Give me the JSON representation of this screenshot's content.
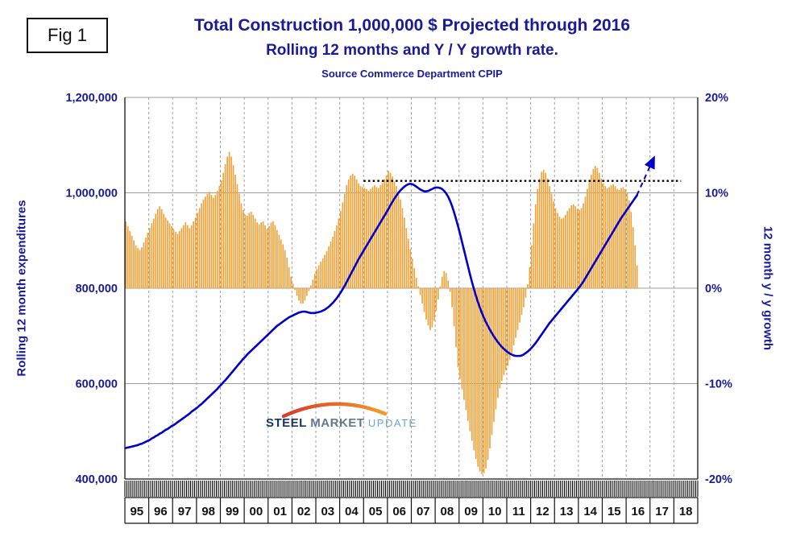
{
  "fig_label": "Fig 1",
  "title_line1": "Total Construction 1,000,000 $ Projected through 2016",
  "title_line2": "Rolling 12 months and Y / Y growth rate.",
  "source_line": "Source Commerce Department CPIP",
  "logo": {
    "word1": "STEEL",
    "word2": "MARKET",
    "word3": "UPDATE"
  },
  "colors": {
    "navy": "#1a1a99",
    "bar": "#F1A33C",
    "line_blue": "#0000CC",
    "grid": "#9e9e9e",
    "reference_dotted": "#000000",
    "year_label": "#111111"
  },
  "chart_data": {
    "type": "combo",
    "title": "Total Construction 1,000,000 $ Projected through 2016 — Rolling 12 months and Y / Y growth rate",
    "x_axis": {
      "start_year": 1995,
      "end_year": 2019,
      "year_labels": [
        "95",
        "96",
        "97",
        "98",
        "99",
        "00",
        "01",
        "02",
        "03",
        "04",
        "05",
        "06",
        "07",
        "08",
        "09",
        "10",
        "11",
        "12",
        "13",
        "14",
        "15",
        "16",
        "17",
        "18"
      ]
    },
    "left_axis": {
      "label": "Rolling 12 month expenditures",
      "unit": "thousand_dollars",
      "range": [
        400,
        1200
      ],
      "tick_values": [
        400,
        600,
        800,
        1000,
        1200
      ],
      "tick_labels": [
        "400,000",
        "600,000",
        "800,000",
        "1,000,000",
        "1,200,000"
      ]
    },
    "right_axis": {
      "label": "12 month y / y growth",
      "unit": "percent",
      "range": [
        -20,
        20
      ],
      "tick_values": [
        -20,
        -10,
        0,
        10,
        20
      ],
      "tick_labels": [
        "-20%",
        "-10%",
        "0%",
        "10%",
        "20%"
      ]
    },
    "series": [
      {
        "name": "yy-growth-bars",
        "type": "bar",
        "axis": "right",
        "unit": "percent",
        "start": "1995-01",
        "monthly_values": [
          7.0,
          6.5,
          6.0,
          5.5,
          5.0,
          4.5,
          4.2,
          4.0,
          4.3,
          4.8,
          5.3,
          5.8,
          6.3,
          6.8,
          7.3,
          7.8,
          8.3,
          8.6,
          8.3,
          7.8,
          7.4,
          7.1,
          6.8,
          6.5,
          6.2,
          5.9,
          5.7,
          6.0,
          6.3,
          6.6,
          6.9,
          6.6,
          6.3,
          6.6,
          7.0,
          7.4,
          7.9,
          8.4,
          8.9,
          9.3,
          9.6,
          9.9,
          10.1,
          9.8,
          9.5,
          9.8,
          10.2,
          10.7,
          11.3,
          12.1,
          13.0,
          13.8,
          14.3,
          13.8,
          12.9,
          11.9,
          10.9,
          9.9,
          8.9,
          8.2,
          7.7,
          7.6,
          7.9,
          8.0,
          7.7,
          7.3,
          6.9,
          6.7,
          6.9,
          7.0,
          6.6,
          6.2,
          6.5,
          6.9,
          7.0,
          6.6,
          6.1,
          5.6,
          5.1,
          4.6,
          4.0,
          3.2,
          2.2,
          1.2,
          0.5,
          -0.2,
          -0.8,
          -1.3,
          -1.6,
          -1.6,
          -1.3,
          -0.8,
          -0.3,
          0.3,
          0.9,
          1.5,
          2.0,
          2.4,
          2.8,
          3.1,
          3.5,
          3.9,
          4.4,
          4.9,
          5.4,
          6.0,
          6.6,
          7.3,
          8.1,
          9.0,
          9.9,
          10.8,
          11.4,
          11.8,
          12.0,
          11.8,
          11.4,
          11.0,
          10.7,
          10.6,
          10.5,
          10.4,
          10.2,
          10.4,
          10.6,
          10.8,
          10.6,
          10.5,
          10.8,
          11.0,
          11.4,
          11.8,
          12.3,
          12.1,
          11.7,
          11.2,
          10.7,
          10.1,
          9.3,
          8.4,
          7.4,
          6.3,
          5.2,
          4.1,
          3.1,
          2.1,
          1.1,
          0.2,
          -0.7,
          -1.6,
          -2.5,
          -3.3,
          -3.9,
          -4.4,
          -4.1,
          -3.4,
          -2.4,
          -1.2,
          0.2,
          1.2,
          1.8,
          1.6,
          0.8,
          -0.4,
          -2.0,
          -4.0,
          -6.2,
          -8.3,
          -9.5,
          -10.6,
          -11.7,
          -12.8,
          -13.9,
          -15.0,
          -16.0,
          -17.0,
          -17.9,
          -18.7,
          -19.2,
          -19.5,
          -19.4,
          -18.9,
          -18.0,
          -16.8,
          -15.4,
          -14.0,
          -12.7,
          -11.5,
          -10.5,
          -9.7,
          -9.1,
          -8.6,
          -8.1,
          -7.5,
          -6.8,
          -6.0,
          -5.2,
          -4.4,
          -3.6,
          -2.8,
          -2.0,
          -1.0,
          0.4,
          2.2,
          4.5,
          6.8,
          8.8,
          10.4,
          11.5,
          12.2,
          12.4,
          12.1,
          11.5,
          10.7,
          9.9,
          9.1,
          8.4,
          7.9,
          7.5,
          7.3,
          7.4,
          7.7,
          8.1,
          8.4,
          8.7,
          8.8,
          8.6,
          8.3,
          8.2,
          8.4,
          8.9,
          9.6,
          10.4,
          11.2,
          11.9,
          12.5,
          12.8,
          12.6,
          12.1,
          11.5,
          11.0,
          10.7,
          10.5,
          10.6,
          10.8,
          10.9,
          10.7,
          10.4,
          10.3,
          10.5,
          10.6,
          10.4,
          10.0,
          9.2,
          8.0,
          6.4,
          4.5,
          2.4
        ]
      },
      {
        "name": "rolling-12-month-expenditures",
        "type": "line",
        "axis": "left",
        "unit": "thousand_dollars",
        "start": "1995-01",
        "monthly_values": [
          465,
          466,
          467,
          468,
          469,
          470,
          471,
          473,
          474,
          476,
          478,
          480,
          482,
          485,
          487,
          490,
          492,
          495,
          497,
          500,
          503,
          505,
          508,
          511,
          513,
          516,
          519,
          522,
          525,
          528,
          531,
          534,
          537,
          541,
          544,
          547,
          550,
          554,
          557,
          561,
          565,
          569,
          573,
          577,
          581,
          585,
          589,
          594,
          598,
          603,
          607,
          612,
          617,
          622,
          627,
          632,
          637,
          642,
          647,
          652,
          656,
          661,
          665,
          669,
          673,
          677,
          681,
          685,
          689,
          693,
          697,
          701,
          705,
          709,
          713,
          717,
          721,
          724,
          727,
          730,
          733,
          736,
          739,
          741,
          743,
          745,
          747,
          749,
          750,
          751,
          751,
          750,
          749,
          748,
          748,
          748,
          749,
          750,
          751,
          753,
          755,
          758,
          761,
          765,
          769,
          774,
          779,
          785,
          791,
          798,
          805,
          813,
          821,
          829,
          837,
          845,
          853,
          861,
          868,
          875,
          882,
          889,
          896,
          903,
          910,
          917,
          924,
          931,
          938,
          945,
          952,
          959,
          966,
          974,
          981,
          988,
          994,
          1000,
          1005,
          1009,
          1013,
          1016,
          1018,
          1019,
          1018,
          1016,
          1013,
          1010,
          1007,
          1005,
          1003,
          1003,
          1004,
          1006,
          1008,
          1010,
          1011,
          1011,
          1010,
          1008,
          1004,
          999,
          992,
          983,
          972,
          959,
          945,
          930,
          914,
          897,
          880,
          863,
          846,
          829,
          813,
          798,
          784,
          771,
          759,
          748,
          738,
          729,
          721,
          713,
          706,
          699,
          693,
          687,
          682,
          677,
          673,
          669,
          666,
          663,
          661,
          659,
          658,
          658,
          658,
          659,
          661,
          664,
          667,
          671,
          675,
          680,
          685,
          691,
          697,
          703,
          709,
          715,
          721,
          727,
          732,
          737,
          742,
          747,
          752,
          757,
          762,
          767,
          772,
          777,
          782,
          787,
          792,
          797,
          802,
          808,
          814,
          821,
          828,
          835,
          842,
          849,
          856,
          863,
          870,
          877,
          884,
          891,
          898,
          905,
          912,
          919,
          926,
          933,
          940,
          947,
          953,
          959,
          965,
          971,
          977,
          983,
          989,
          995
        ]
      },
      {
        "name": "projection-arrow",
        "type": "line-dashed-arrow",
        "axis": "left",
        "unit": "thousand_dollars",
        "points": [
          [
            2016.45,
            995
          ],
          [
            2017.15,
            1072
          ]
        ]
      },
      {
        "name": "reference-dotted-line",
        "type": "hline-dotted",
        "axis": "left",
        "unit": "thousand_dollars",
        "value": 1025,
        "x_range": [
          2005.0,
          2018.3
        ]
      }
    ]
  }
}
